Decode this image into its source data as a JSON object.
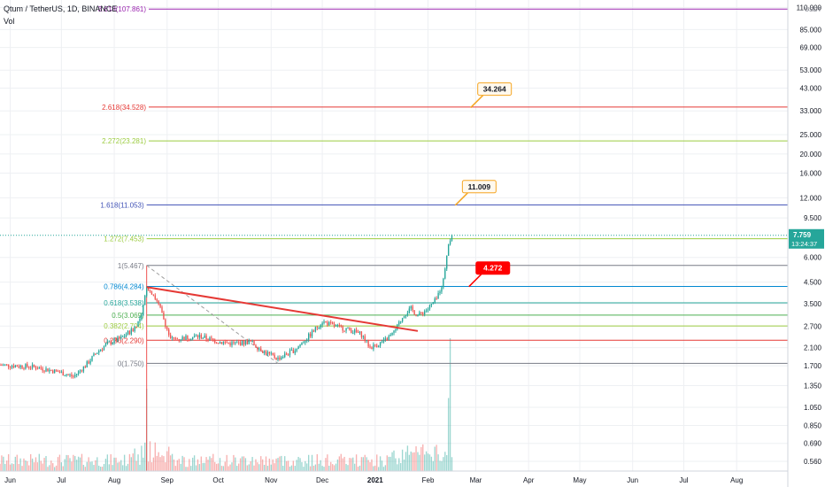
{
  "header": {
    "symbol": "Qtum / TetherUS, 1D, BINANCE",
    "indicator": "Vol"
  },
  "chart_data": {
    "type": "candlestick",
    "price_axis": {
      "unit": "USDT",
      "scale": "log",
      "range": [
        0.5,
        115
      ],
      "ticks": [
        {
          "v": 110,
          "label": "110.000"
        },
        {
          "v": 85,
          "label": "85.000"
        },
        {
          "v": 69,
          "label": "69.000"
        },
        {
          "v": 53,
          "label": "53.000"
        },
        {
          "v": 43,
          "label": "43.000"
        },
        {
          "v": 33,
          "label": "33.000"
        },
        {
          "v": 25,
          "label": "25.000"
        },
        {
          "v": 20,
          "label": "20.000"
        },
        {
          "v": 16,
          "label": "16.000"
        },
        {
          "v": 12,
          "label": "12.000"
        },
        {
          "v": 9.5,
          "label": "9.500"
        },
        {
          "v": 6,
          "label": "6.000"
        },
        {
          "v": 4.5,
          "label": "4.500"
        },
        {
          "v": 3.5,
          "label": "3.500"
        },
        {
          "v": 2.7,
          "label": "2.700"
        },
        {
          "v": 2.1,
          "label": "2.100"
        },
        {
          "v": 1.7,
          "label": "1.700"
        },
        {
          "v": 1.35,
          "label": "1.350"
        },
        {
          "v": 1.05,
          "label": "1.050"
        },
        {
          "v": 0.85,
          "label": "0.850"
        },
        {
          "v": 0.69,
          "label": "0.690"
        },
        {
          "v": 0.56,
          "label": "0.560"
        }
      ]
    },
    "time_axis": {
      "start": "2020-05-26",
      "end": "2021-08-31",
      "ticks": [
        {
          "date": "2020-06-01",
          "label": "Jun"
        },
        {
          "date": "2020-07-01",
          "label": "Jul"
        },
        {
          "date": "2020-08-01",
          "label": "Aug"
        },
        {
          "date": "2020-09-01",
          "label": "Sep"
        },
        {
          "date": "2020-10-01",
          "label": "Oct"
        },
        {
          "date": "2020-11-01",
          "label": "Nov"
        },
        {
          "date": "2020-12-01",
          "label": "Dec"
        },
        {
          "date": "2021-01-01",
          "label": "2021"
        },
        {
          "date": "2021-02-01",
          "label": "Feb"
        },
        {
          "date": "2021-03-01",
          "label": "Mar"
        },
        {
          "date": "2021-04-01",
          "label": "Apr"
        },
        {
          "date": "2021-05-01",
          "label": "May"
        },
        {
          "date": "2021-06-01",
          "label": "Jun"
        },
        {
          "date": "2021-07-01",
          "label": "Jul"
        },
        {
          "date": "2021-08-01",
          "label": "Aug"
        }
      ]
    },
    "price_path": [
      [
        "2020-05-26",
        1.72
      ],
      [
        "2020-06-15",
        1.68
      ],
      [
        "2020-06-30",
        1.58
      ],
      [
        "2020-07-08",
        1.5
      ],
      [
        "2020-07-15",
        1.7
      ],
      [
        "2020-07-22",
        2.0
      ],
      [
        "2020-07-28",
        2.2
      ],
      [
        "2020-08-05",
        2.35
      ],
      [
        "2020-08-12",
        2.6
      ],
      [
        "2020-08-17",
        3.0
      ],
      [
        "2020-08-20",
        4.3
      ],
      [
        "2020-08-24",
        3.9
      ],
      [
        "2020-08-28",
        3.3
      ],
      [
        "2020-09-03",
        2.3
      ],
      [
        "2020-09-10",
        2.35
      ],
      [
        "2020-09-20",
        2.4
      ],
      [
        "2020-10-01",
        2.25
      ],
      [
        "2020-10-10",
        2.2
      ],
      [
        "2020-10-20",
        2.25
      ],
      [
        "2020-10-28",
        2.0
      ],
      [
        "2020-11-05",
        1.85
      ],
      [
        "2020-11-15",
        2.05
      ],
      [
        "2020-11-25",
        2.5
      ],
      [
        "2020-12-01",
        2.85
      ],
      [
        "2020-12-08",
        2.7
      ],
      [
        "2020-12-16",
        2.6
      ],
      [
        "2020-12-24",
        2.45
      ],
      [
        "2020-12-29",
        2.1
      ],
      [
        "2021-01-06",
        2.25
      ],
      [
        "2021-01-12",
        2.5
      ],
      [
        "2021-01-18",
        3.1
      ],
      [
        "2021-01-22",
        3.3
      ],
      [
        "2021-01-26",
        3.05
      ],
      [
        "2021-02-01",
        3.3
      ],
      [
        "2021-02-06",
        3.7
      ],
      [
        "2021-02-10",
        4.6
      ],
      [
        "2021-02-13",
        7.2
      ],
      [
        "2021-02-15",
        7.759
      ]
    ],
    "volume_spikes": [
      {
        "date": "2020-08-20",
        "level": 0.62
      },
      {
        "date": "2021-02-14",
        "level": 1.0
      },
      {
        "date": "2021-02-13",
        "level": 0.55
      }
    ],
    "fib_levels": [
      {
        "price": 107.861,
        "label": "3.618(107.861)",
        "color": "#9c27b0"
      },
      {
        "price": 34.528,
        "label": "2.618(34.528)",
        "color": "#e53935"
      },
      {
        "price": 23.281,
        "label": "2.272(23.281)",
        "color": "#9ccc41"
      },
      {
        "price": 11.053,
        "label": "1.618(11.053)",
        "color": "#3f51b5"
      },
      {
        "price": 7.453,
        "label": "1.272(7.453)",
        "color": "#9ccc41"
      },
      {
        "price": 5.467,
        "label": "1(5.467)",
        "color": "#787b86"
      },
      {
        "price": 4.284,
        "label": "0.786(4.284)",
        "color": "#0288d1"
      },
      {
        "price": 3.538,
        "label": "0.618(3.538)",
        "color": "#26a69a"
      },
      {
        "price": 3.069,
        "label": "0.5(3.069)",
        "color": "#4caf50"
      },
      {
        "price": 2.704,
        "label": "0.382(2.704)",
        "color": "#9ccc41"
      },
      {
        "price": 2.29,
        "label": "0.236(2.290)",
        "color": "#e53935"
      },
      {
        "price": 1.75,
        "label": "0(1.750)",
        "color": "#787b86"
      }
    ],
    "trendline": {
      "from": {
        "date": "2020-08-20",
        "price": 4.25
      },
      "to": {
        "date": "2021-01-26",
        "price": 2.55
      },
      "color": "#e53935"
    },
    "callouts": [
      {
        "text": "34.264",
        "anchor_date": "2021-02-26",
        "price": 34.264,
        "style": "outline",
        "color": "#f5a623"
      },
      {
        "text": "11.009",
        "anchor_date": "2021-02-17",
        "price": 11.009,
        "style": "outline",
        "color": "#f5a623"
      },
      {
        "text": "4.272",
        "anchor_date": "2021-02-25",
        "price": 4.272,
        "style": "filled",
        "color": "#ff0000"
      }
    ],
    "last_price": {
      "value": 7.759,
      "label": "7.759",
      "countdown": "13:24:37",
      "color": "#26a69a"
    },
    "colors": {
      "up": "#26a69a",
      "down": "#ef5350",
      "grid": "#eef0f3"
    }
  }
}
